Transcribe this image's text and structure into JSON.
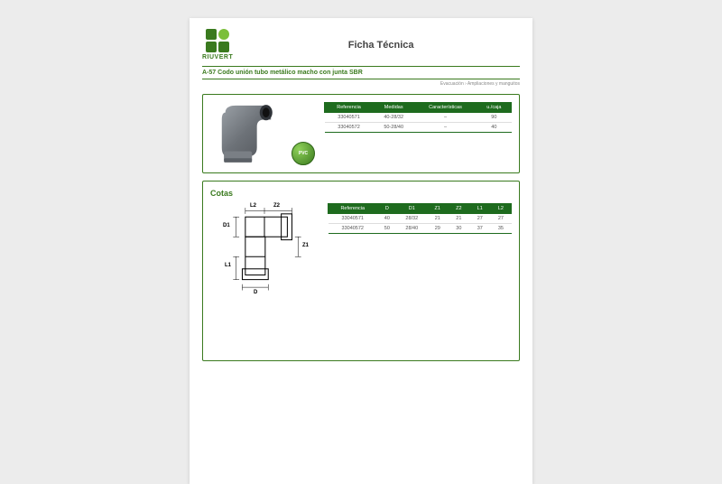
{
  "brand": "RIUVERT",
  "doc_title": "Ficha Técnica",
  "product_code": "A-57",
  "product_name": "Codo unión tubo metálico macho con junta SBR",
  "breadcrumb": "Evacuación › Ampliaciones y manguitos",
  "eco_badge": "PVC",
  "table1": {
    "headers": [
      "Referencia",
      "Medidas",
      "Características",
      "u./caja"
    ],
    "rows": [
      [
        "33040571",
        "40-28/32",
        "–",
        "90"
      ],
      [
        "33040572",
        "50-28/40",
        "–",
        "40"
      ]
    ]
  },
  "section2_title": "Cotas",
  "dims": {
    "L2": "L2",
    "Z2": "Z2",
    "D1": "D1",
    "L1": "L1",
    "Z1": "Z1",
    "D": "D"
  },
  "table2": {
    "headers": [
      "Referencia",
      "D",
      "D1",
      "Z1",
      "Z2",
      "L1",
      "L2"
    ],
    "rows": [
      [
        "33040571",
        "40",
        "28/32",
        "21",
        "21",
        "27",
        "27"
      ],
      [
        "33040572",
        "50",
        "28/40",
        "29",
        "30",
        "37",
        "35"
      ]
    ]
  },
  "colors": {
    "brand_green": "#3a7a1e",
    "header_green": "#1e6b1e",
    "pipe_grey": "#7a7f85",
    "pipe_dark": "#5b6066"
  }
}
